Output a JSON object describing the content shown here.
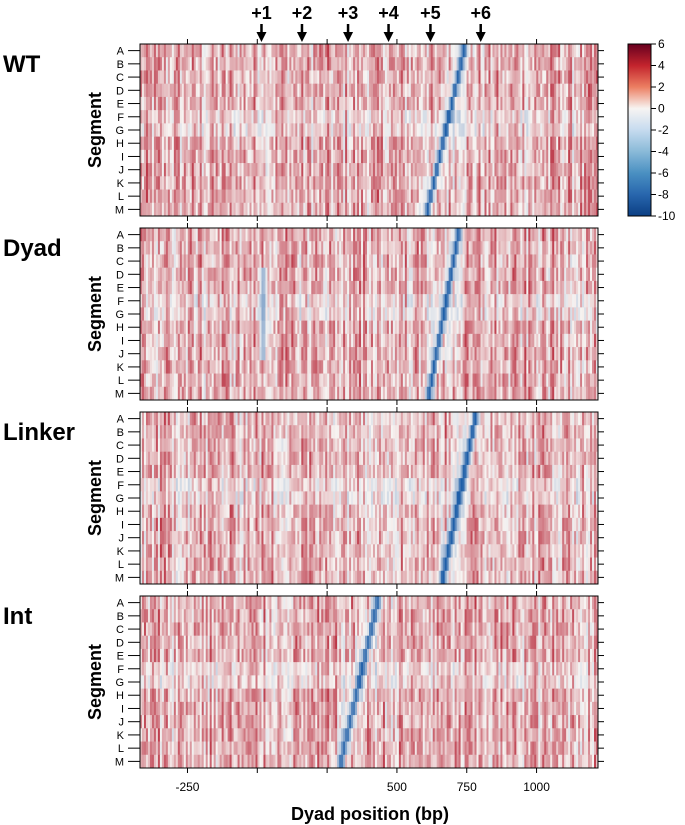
{
  "chart_data": {
    "type": "heatmap",
    "xlabel": "Dyad position (bp)",
    "ylabel": "Segment",
    "xlim": [
      -420,
      1220
    ],
    "x_ticks": [
      -250,
      0,
      250,
      500,
      750,
      1000
    ],
    "x_tick_labels": [
      "-250",
      "",
      "",
      "500",
      "750",
      "1000"
    ],
    "rows": [
      "A",
      "B",
      "C",
      "D",
      "E",
      "F",
      "G",
      "H",
      "I",
      "J",
      "K",
      "L",
      "M"
    ],
    "color_scale": {
      "min": -10,
      "max": 6,
      "ticks": [
        6,
        4,
        2,
        0,
        -2,
        -4,
        -6,
        -8,
        -10
      ],
      "low_color": "#1f5fa8",
      "mid_color": "#f7f4f2",
      "high_color": "#b2182b"
    },
    "nucleosome_markers": [
      {
        "label": "+1",
        "position": 15
      },
      {
        "label": "+2",
        "position": 160
      },
      {
        "label": "+3",
        "position": 325
      },
      {
        "label": "+4",
        "position": 470
      },
      {
        "label": "+5",
        "position": 620
      },
      {
        "label": "+6",
        "position": 800
      }
    ],
    "panels": [
      {
        "name": "WT",
        "trough_top": 740,
        "trough_bottom": 610,
        "trough_depth": -8.5,
        "trough_width": 10
      },
      {
        "name": "Dyad",
        "trough_top": 720,
        "trough_bottom": 615,
        "trough_depth": -8.5,
        "trough_width": 10,
        "dyad_signal": {
          "position": 20,
          "depth": -6
        }
      },
      {
        "name": "Linker",
        "trough_top": 780,
        "trough_bottom": 665,
        "trough_depth": -9.0,
        "trough_width": 12
      },
      {
        "name": "Int",
        "trough_top": 430,
        "trough_bottom": 300,
        "trough_depth": -7.5,
        "trough_width": 12
      }
    ]
  }
}
